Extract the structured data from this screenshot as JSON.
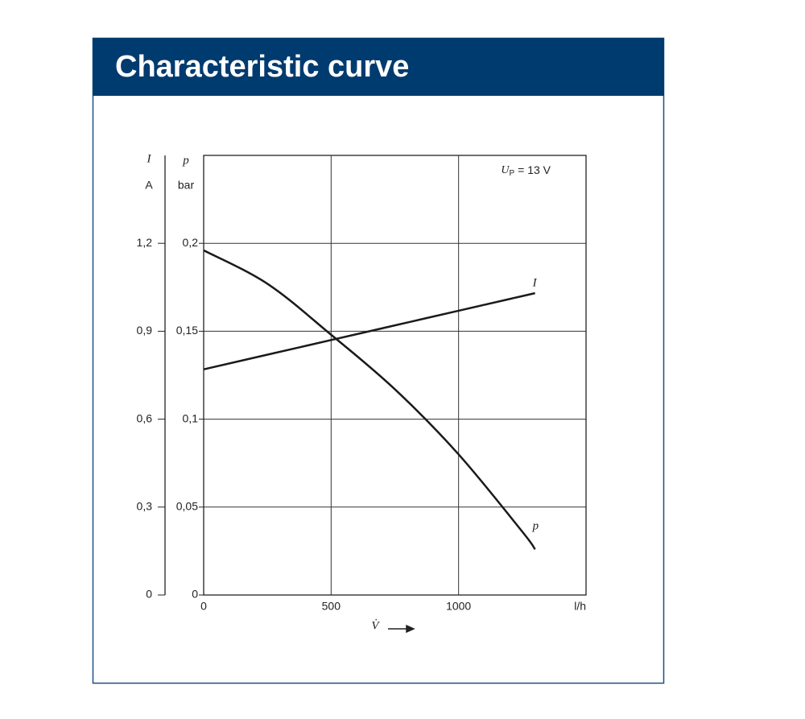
{
  "chart_data": {
    "type": "line",
    "title": "Characteristic curve",
    "annotation": {
      "symbol": "U",
      "subscript": "P",
      "text": "= 13 V"
    },
    "x_label": "V̇",
    "y_label": {
      "symbol": "p",
      "unit": "bar"
    },
    "y2_label": {
      "symbol": "I",
      "unit": "A"
    },
    "x": [
      0,
      250,
      500,
      750,
      1000,
      1250,
      1300
    ],
    "series": [
      {
        "name": "p",
        "color": "#1a1a1a",
        "values": [
          0.196,
          0.177,
          0.148,
          0.117,
          0.08,
          0.036,
          0.026
        ]
      },
      {
        "name": "I",
        "color": "#1a1a1a",
        "axis": "y2",
        "values": [
          0.77,
          0.82,
          0.87,
          0.92,
          0.97,
          1.02,
          1.03
        ]
      }
    ],
    "xlim": [
      0,
      1500
    ],
    "xticks": [
      0,
      500,
      1000,
      {
        "value": 1500,
        "label": "l/h"
      }
    ],
    "ylim": [
      0,
      0.25
    ],
    "yticks": [
      0,
      {
        "value": 0.05,
        "label": "0,05"
      },
      {
        "value": 0.1,
        "label": "0,1"
      },
      {
        "value": 0.15,
        "label": "0,15"
      },
      {
        "value": 0.2,
        "label": "0,2"
      }
    ],
    "y2lim": [
      0,
      1.5
    ],
    "y2ticks": [
      0,
      {
        "value": 0.3,
        "label": "0,3"
      },
      {
        "value": 0.6,
        "label": "0,6"
      },
      {
        "value": 0.9,
        "label": "0,9"
      },
      {
        "value": 1.2,
        "label": "1,2"
      }
    ],
    "grid": true
  }
}
